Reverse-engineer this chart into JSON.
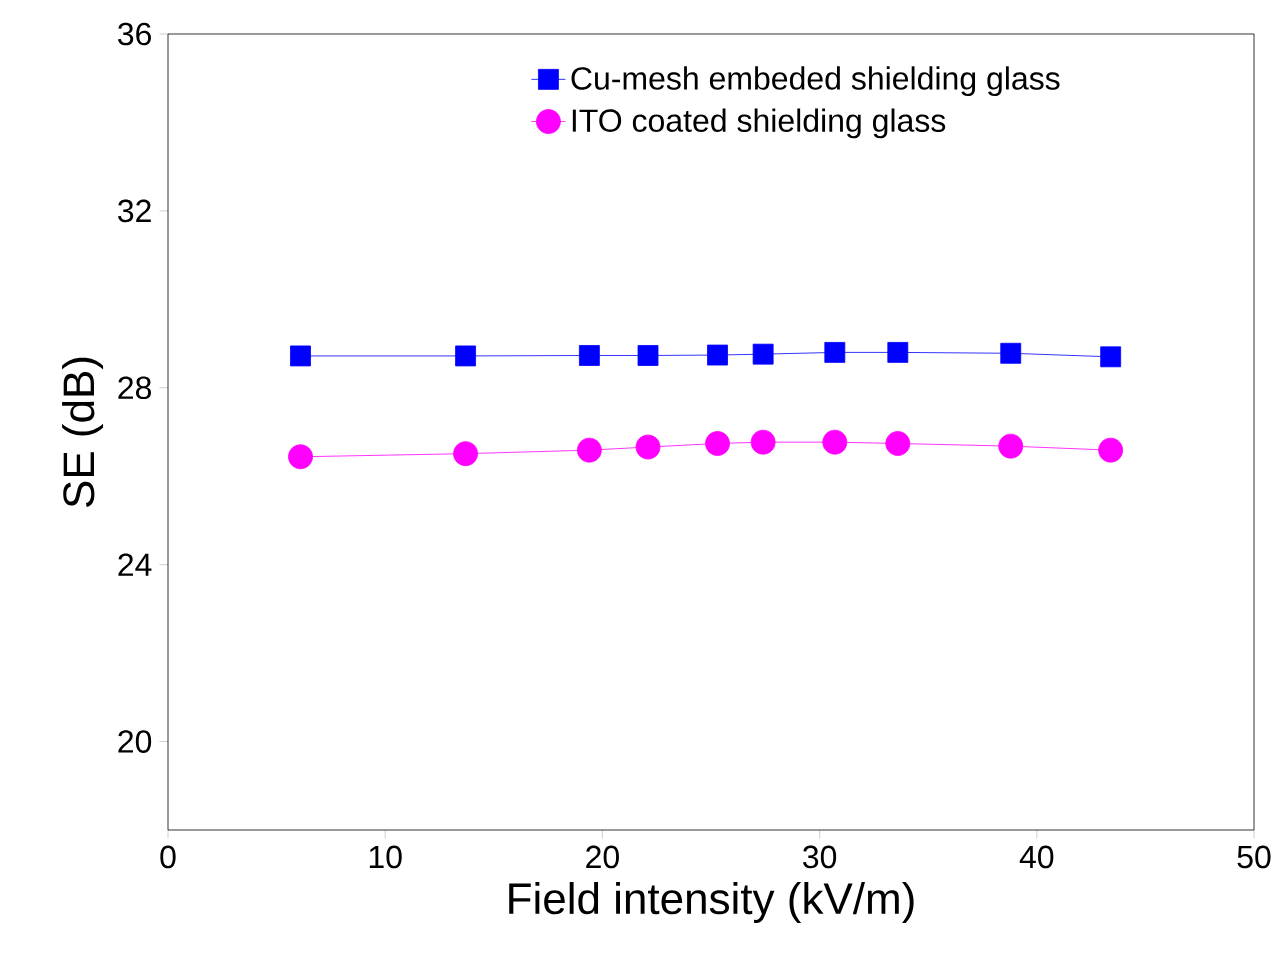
{
  "chart_data": {
    "type": "line",
    "xlabel": "Field intensity (kV/m)",
    "ylabel": "SE (dB)",
    "x": [
      6.1,
      13.7,
      19.4,
      22.1,
      25.3,
      27.4,
      30.7,
      33.6,
      38.8,
      43.4
    ],
    "series": [
      {
        "name": "Cu-mesh embeded shielding glass",
        "color": "#0000ff",
        "marker": "square",
        "values": [
          28.72,
          28.72,
          28.73,
          28.73,
          28.74,
          28.76,
          28.8,
          28.8,
          28.78,
          28.7
        ]
      },
      {
        "name": "ITO coated shielding glass",
        "color": "#ff00ff",
        "marker": "circle",
        "values": [
          26.44,
          26.51,
          26.59,
          26.66,
          26.74,
          26.77,
          26.77,
          26.74,
          26.68,
          26.59
        ]
      }
    ],
    "xlim": [
      0,
      50
    ],
    "xticks": [
      0,
      10,
      20,
      30,
      40,
      50
    ],
    "ylim": [
      18,
      36
    ],
    "yticks": [
      20,
      24,
      28,
      32,
      36
    ],
    "grid": false,
    "legend": "top",
    "line_style": "solid"
  }
}
